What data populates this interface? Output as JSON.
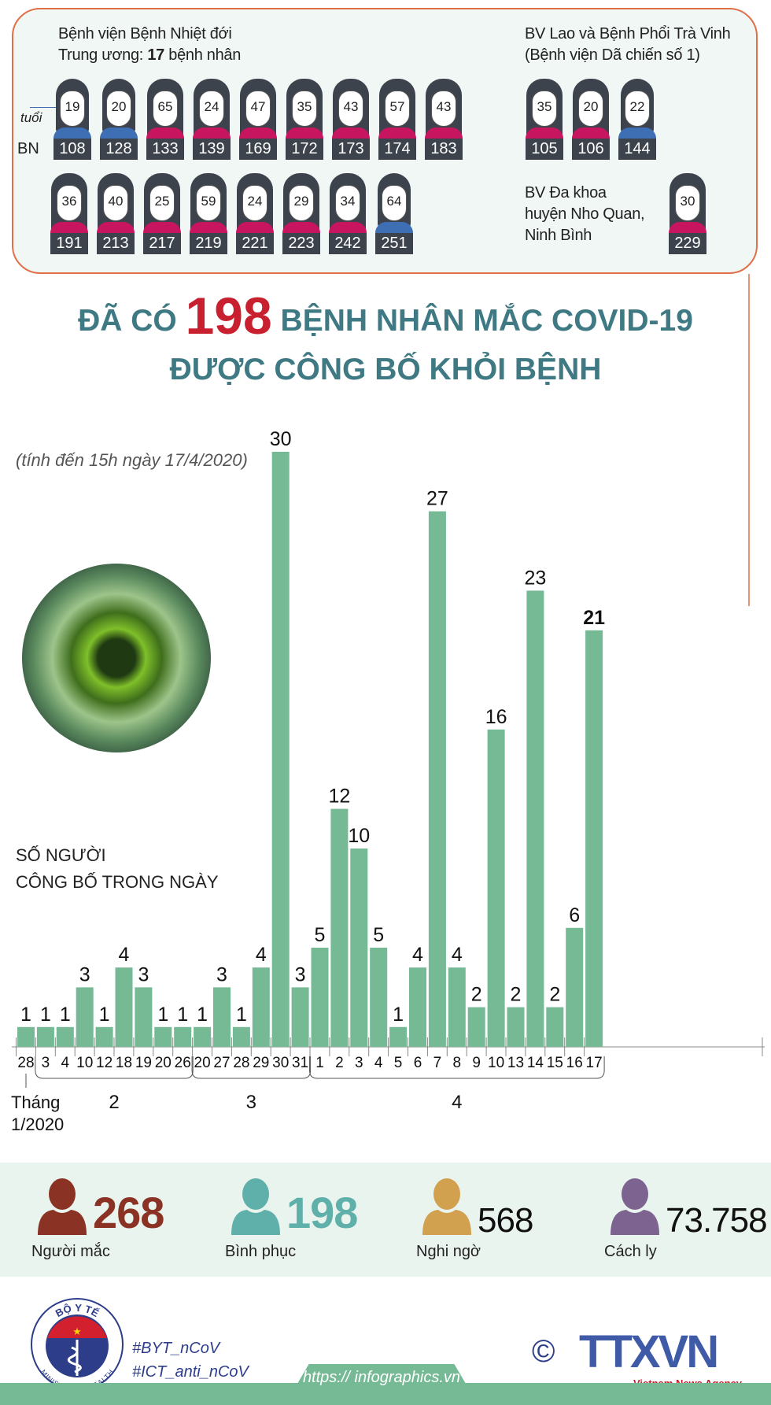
{
  "panel": {
    "left_title_1": "Bệnh viện Bệnh Nhiệt đới",
    "left_title_2_prefix": "Trung ương: ",
    "left_title_2_count": "17",
    "left_title_2_suffix": " bệnh nhân",
    "age_label": "tuổi",
    "bn_label": "BN",
    "left_row1": [
      {
        "bn": "108",
        "age": "19",
        "g": "m"
      },
      {
        "bn": "128",
        "age": "20",
        "g": "m"
      },
      {
        "bn": "133",
        "age": "65",
        "g": "f"
      },
      {
        "bn": "139",
        "age": "24",
        "g": "f"
      },
      {
        "bn": "169",
        "age": "47",
        "g": "f"
      },
      {
        "bn": "172",
        "age": "35",
        "g": "f"
      },
      {
        "bn": "173",
        "age": "43",
        "g": "f"
      },
      {
        "bn": "174",
        "age": "57",
        "g": "f"
      },
      {
        "bn": "183",
        "age": "43",
        "g": "f"
      }
    ],
    "left_row2": [
      {
        "bn": "191",
        "age": "36",
        "g": "f"
      },
      {
        "bn": "213",
        "age": "40",
        "g": "f"
      },
      {
        "bn": "217",
        "age": "25",
        "g": "f"
      },
      {
        "bn": "219",
        "age": "59",
        "g": "f"
      },
      {
        "bn": "221",
        "age": "24",
        "g": "f"
      },
      {
        "bn": "223",
        "age": "29",
        "g": "f"
      },
      {
        "bn": "242",
        "age": "34",
        "g": "f"
      },
      {
        "bn": "251",
        "age": "64",
        "g": "m"
      }
    ],
    "right_title_1": "BV Lao và Bệnh Phổi Trà Vinh",
    "right_title_2": "(Bệnh viện Dã chiến số 1)",
    "right_row": [
      {
        "bn": "105",
        "age": "35",
        "g": "f"
      },
      {
        "bn": "106",
        "age": "20",
        "g": "f"
      },
      {
        "bn": "144",
        "age": "22",
        "g": "m"
      }
    ],
    "nq_title_1": "BV Đa khoa",
    "nq_title_2": "huyện Nho Quan,",
    "nq_title_3": "Ninh Bình",
    "nq_row": [
      {
        "bn": "229",
        "age": "30",
        "g": "f"
      }
    ]
  },
  "colors": {
    "male": "#3e6fb5",
    "female": "#c8155f",
    "bar": "#75b995",
    "title": "#3f7a84",
    "accent": "#c8202f",
    "border": "#e0704a"
  },
  "title": {
    "pre": "ĐÃ CÓ ",
    "num": "198",
    "post": " BỆNH NHÂN MẮC COVID-19",
    "line2": "ĐƯỢC  CÔNG BỐ KHỎI BỆNH"
  },
  "subtitle": "(tính đến 15h ngày 17/4/2020)",
  "chart_data": {
    "type": "bar",
    "ylabel": "SỐ NGƯỜI CÔNG BỐ TRONG NGÀY",
    "ylabel_1": "SỐ NGƯỜI",
    "ylabel_2": "CÔNG BỐ TRONG NGÀY",
    "categories": [
      "28",
      "3",
      "4",
      "10",
      "12",
      "18",
      "19",
      "20",
      "26",
      "20",
      "27",
      "28",
      "29",
      "30",
      "31",
      "1",
      "2",
      "3",
      "4",
      "5",
      "6",
      "7",
      "8",
      "9",
      "10",
      "13",
      "14",
      "15",
      "16",
      "17"
    ],
    "months": [
      {
        "label": "Tháng",
        "label2": "1/2020",
        "from": 0,
        "to": 0
      },
      {
        "label": "2",
        "from": 1,
        "to": 8
      },
      {
        "label": "3",
        "from": 9,
        "to": 14
      },
      {
        "label": "4",
        "from": 15,
        "to": 29
      }
    ],
    "values": [
      1,
      1,
      1,
      3,
      1,
      4,
      3,
      1,
      1,
      1,
      3,
      1,
      4,
      30,
      3,
      5,
      12,
      10,
      5,
      1,
      4,
      27,
      4,
      2,
      16,
      2,
      23,
      2,
      6,
      21
    ],
    "highlight_last": true,
    "ylim": [
      0,
      30
    ]
  },
  "stats": [
    {
      "value": "268",
      "label": "Người mắc",
      "color": "#8a3324"
    },
    {
      "value": "198",
      "label": "Bình phục",
      "color": "#5fb0aa"
    },
    {
      "value": "568",
      "label": "Nghi ngờ",
      "color": "#d2a150"
    },
    {
      "value": "73.758",
      "label": "Cách ly",
      "color": "#7d6390"
    }
  ],
  "footer": {
    "moh_top": "BỘ Y TẾ",
    "moh_bottom": "MINISTRY OF HEALTH",
    "tag1": "#BYT_nCoV",
    "tag2": "#ICT_anti_nCoV",
    "copyright": "©",
    "ttxvn": "TTXVN",
    "ttxvn_sub": "Vietnam News Agency",
    "url": "https:// infographics.vn"
  }
}
